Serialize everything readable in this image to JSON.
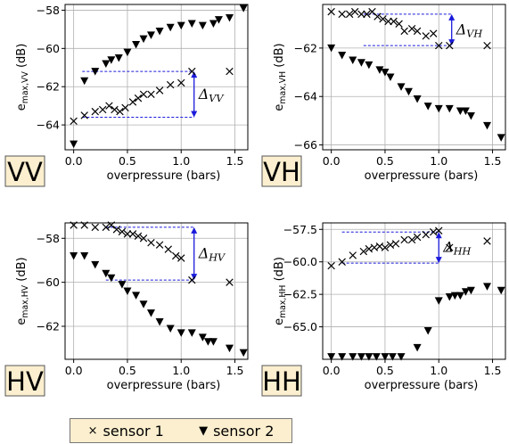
{
  "chart_data": [
    {
      "type": "scatter",
      "panel_label": "VV",
      "xlabel": "overpressure (bars)",
      "ylabel": "e_max,VV (dB)",
      "xlim": [
        -0.08,
        1.62
      ],
      "ylim": [
        -65.3,
        -57.7
      ],
      "xticks": [
        0.0,
        0.5,
        1.0,
        1.5
      ],
      "yticks": [
        -64,
        -62,
        -60,
        -58
      ],
      "delta": {
        "label": "VV",
        "x": 1.12,
        "y_top": -61.2,
        "y_bottom": -63.6,
        "x_start": 0.08
      },
      "series": [
        {
          "name": "sensor 1",
          "marker": "x",
          "x": [
            0.0,
            0.1,
            0.2,
            0.27,
            0.33,
            0.38,
            0.43,
            0.48,
            0.55,
            0.6,
            0.65,
            0.72,
            0.8,
            0.9,
            1.0,
            1.1,
            1.45
          ],
          "y": [
            -63.8,
            -63.5,
            -63.3,
            -63.2,
            -63.0,
            -63.2,
            -63.3,
            -63.1,
            -62.8,
            -62.6,
            -62.4,
            -62.4,
            -62.2,
            -61.9,
            -61.8,
            -61.2,
            -61.2
          ]
        },
        {
          "name": "sensor 2",
          "marker": "triangle-down",
          "x": [
            0.0,
            0.1,
            0.2,
            0.3,
            0.35,
            0.42,
            0.5,
            0.58,
            0.65,
            0.72,
            0.8,
            0.9,
            1.0,
            1.1,
            1.2,
            1.3,
            1.35,
            1.45,
            1.58
          ],
          "y": [
            -65.0,
            -61.7,
            -61.2,
            -60.8,
            -60.6,
            -60.5,
            -60.2,
            -59.8,
            -59.5,
            -59.3,
            -59.1,
            -58.9,
            -58.8,
            -58.7,
            -58.8,
            -58.7,
            -58.5,
            -58.4,
            -57.9
          ]
        }
      ]
    },
    {
      "type": "scatter",
      "panel_label": "VH",
      "xlabel": "overpressure (bars)",
      "ylabel": "e_max,VH (dB)",
      "xlim": [
        -0.08,
        1.62
      ],
      "ylim": [
        -66.2,
        -60.2
      ],
      "xticks": [
        0.0,
        0.5,
        1.0,
        1.5
      ],
      "yticks": [
        -66,
        -64,
        -62
      ],
      "delta": {
        "label": "VH",
        "x": 1.12,
        "y_top": -60.6,
        "y_bottom": -61.9,
        "x_start": 0.3
      },
      "series": [
        {
          "name": "sensor 1",
          "marker": "x",
          "x": [
            0.0,
            0.1,
            0.17,
            0.22,
            0.28,
            0.33,
            0.38,
            0.43,
            0.48,
            0.53,
            0.58,
            0.63,
            0.68,
            0.75,
            0.8,
            0.88,
            0.95,
            1.0,
            1.1,
            1.45
          ],
          "y": [
            -60.5,
            -60.6,
            -60.6,
            -60.5,
            -60.6,
            -60.6,
            -60.5,
            -60.7,
            -60.8,
            -60.9,
            -60.9,
            -61.0,
            -61.3,
            -61.2,
            -61.3,
            -61.5,
            -61.4,
            -61.9,
            -61.9,
            -61.9
          ]
        },
        {
          "name": "sensor 2",
          "marker": "triangle-down",
          "x": [
            0.0,
            0.1,
            0.2,
            0.28,
            0.35,
            0.45,
            0.5,
            0.55,
            0.65,
            0.72,
            0.8,
            0.9,
            1.0,
            1.1,
            1.2,
            1.25,
            1.3,
            1.45,
            1.58
          ],
          "y": [
            -62.0,
            -62.3,
            -62.5,
            -62.6,
            -62.7,
            -62.9,
            -63.0,
            -63.2,
            -63.6,
            -63.8,
            -64.1,
            -64.4,
            -64.5,
            -64.5,
            -64.6,
            -64.6,
            -64.8,
            -65.2,
            -65.7
          ]
        }
      ]
    },
    {
      "type": "scatter",
      "panel_label": "HV",
      "xlabel": "overpressure (bars)",
      "ylabel": "e_max,HV (dB)",
      "xlim": [
        -0.08,
        1.62
      ],
      "ylim": [
        -63.5,
        -57.3
      ],
      "xticks": [
        0.0,
        0.5,
        1.0,
        1.5
      ],
      "yticks": [
        -62,
        -60,
        -58
      ],
      "delta": {
        "label": "HV",
        "x": 1.12,
        "y_top": -57.5,
        "y_bottom": -59.9,
        "x_start": 0.3
      },
      "series": [
        {
          "name": "sensor 1",
          "marker": "x",
          "x": [
            0.0,
            0.1,
            0.2,
            0.3,
            0.35,
            0.4,
            0.45,
            0.5,
            0.55,
            0.6,
            0.65,
            0.72,
            0.8,
            0.88,
            0.95,
            1.0,
            1.1,
            1.45
          ],
          "y": [
            -57.4,
            -57.4,
            -57.5,
            -57.5,
            -57.4,
            -57.6,
            -57.7,
            -57.8,
            -57.8,
            -57.9,
            -58.0,
            -58.2,
            -58.3,
            -58.5,
            -58.8,
            -58.9,
            -59.9,
            -60.0
          ]
        },
        {
          "name": "sensor 2",
          "marker": "triangle-down",
          "x": [
            0.0,
            0.1,
            0.2,
            0.3,
            0.35,
            0.45,
            0.5,
            0.58,
            0.65,
            0.72,
            0.8,
            0.9,
            1.0,
            1.1,
            1.2,
            1.25,
            1.3,
            1.45,
            1.58
          ],
          "y": [
            -58.8,
            -58.8,
            -59.2,
            -59.6,
            -59.8,
            -60.1,
            -60.4,
            -60.6,
            -61.0,
            -61.4,
            -61.8,
            -62.1,
            -62.3,
            -62.3,
            -62.5,
            -62.7,
            -62.7,
            -63.0,
            -63.2
          ]
        }
      ]
    },
    {
      "type": "scatter",
      "panel_label": "HH",
      "xlabel": "overpressure (bars)",
      "ylabel": "e_max,HH (dB)",
      "xlim": [
        -0.08,
        1.62
      ],
      "ylim": [
        -67.5,
        -57.0
      ],
      "xticks": [
        0.0,
        0.5,
        1.0,
        1.5
      ],
      "yticks": [
        -65.0,
        -62.5,
        -60.0,
        -57.5
      ],
      "delta": {
        "label": "HH",
        "x": 1.0,
        "y_top": -57.7,
        "y_bottom": -60.1,
        "x_start": 0.1
      },
      "series": [
        {
          "name": "sensor 1",
          "marker": "x",
          "x": [
            0.0,
            0.1,
            0.2,
            0.3,
            0.35,
            0.4,
            0.45,
            0.5,
            0.55,
            0.6,
            0.68,
            0.75,
            0.8,
            0.88,
            0.95,
            1.0,
            1.1,
            1.45
          ],
          "y": [
            -60.3,
            -60.0,
            -59.5,
            -59.2,
            -59.0,
            -58.9,
            -58.8,
            -58.9,
            -58.7,
            -58.6,
            -58.3,
            -58.3,
            -58.1,
            -57.9,
            -57.7,
            -57.6,
            -58.9,
            -58.4
          ]
        },
        {
          "name": "sensor 2",
          "marker": "triangle-down",
          "x": [
            0.0,
            0.1,
            0.2,
            0.28,
            0.35,
            0.42,
            0.5,
            0.57,
            0.65,
            0.8,
            0.9,
            1.0,
            1.1,
            1.15,
            1.2,
            1.25,
            1.3,
            1.45,
            1.58
          ],
          "y": [
            -67.3,
            -67.3,
            -67.3,
            -67.3,
            -67.3,
            -67.3,
            -67.3,
            -67.3,
            -67.3,
            -66.6,
            -65.3,
            -63.0,
            -62.7,
            -62.6,
            -62.6,
            -62.3,
            -62.2,
            -61.9,
            -62.2
          ]
        }
      ]
    }
  ],
  "legend": {
    "items": [
      {
        "label": "sensor 1",
        "marker": "×"
      },
      {
        "label": "sensor 2",
        "marker": "▼"
      }
    ]
  },
  "colors": {
    "marker": "#000000",
    "grid": "#b0b0b0",
    "annotation": "#1a1adb",
    "label_box_fill": "#fcefcf"
  }
}
